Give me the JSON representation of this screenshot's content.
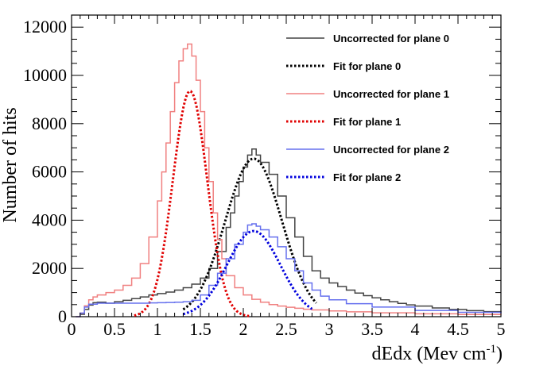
{
  "chart_data": {
    "type": "line",
    "xlabel": "dEdx (Mev cm",
    "xlabel_sup": "-1",
    "xlabel_close": ")",
    "ylabel": "Number of hits",
    "xlim": [
      0,
      5
    ],
    "ylim": [
      0,
      12500
    ],
    "x_ticks": [
      "0",
      "0.5",
      "1",
      "1.5",
      "2",
      "2.5",
      "3",
      "3.5",
      "4",
      "4.5",
      "5"
    ],
    "y_ticks": [
      "0",
      "2000",
      "4000",
      "6000",
      "8000",
      "10000",
      "12000"
    ],
    "legend_position": "top-right",
    "grid": false,
    "series": [
      {
        "name": "Uncorrected for plane 0",
        "color": "#444444",
        "style": "hist",
        "points": [
          [
            0.05,
            0
          ],
          [
            0.1,
            100
          ],
          [
            0.15,
            300
          ],
          [
            0.2,
            480
          ],
          [
            0.25,
            580
          ],
          [
            0.3,
            600
          ],
          [
            0.4,
            560
          ],
          [
            0.5,
            620
          ],
          [
            0.6,
            680
          ],
          [
            0.7,
            750
          ],
          [
            0.8,
            820
          ],
          [
            0.9,
            900
          ],
          [
            1.0,
            960
          ],
          [
            1.1,
            1020
          ],
          [
            1.2,
            1100
          ],
          [
            1.3,
            1200
          ],
          [
            1.4,
            1350
          ],
          [
            1.5,
            1600
          ],
          [
            1.6,
            2000
          ],
          [
            1.7,
            2700
          ],
          [
            1.8,
            3700
          ],
          [
            1.85,
            4300
          ],
          [
            1.9,
            5000
          ],
          [
            1.95,
            5600
          ],
          [
            2.0,
            6200
          ],
          [
            2.05,
            6700
          ],
          [
            2.1,
            6950
          ],
          [
            2.15,
            6700
          ],
          [
            2.2,
            6400
          ],
          [
            2.3,
            5900
          ],
          [
            2.4,
            5000
          ],
          [
            2.5,
            4100
          ],
          [
            2.6,
            3300
          ],
          [
            2.7,
            2500
          ],
          [
            2.8,
            1900
          ],
          [
            2.9,
            1600
          ],
          [
            3.0,
            1400
          ],
          [
            3.1,
            1250
          ],
          [
            3.2,
            1100
          ],
          [
            3.3,
            980
          ],
          [
            3.4,
            870
          ],
          [
            3.5,
            780
          ],
          [
            3.6,
            700
          ],
          [
            3.7,
            620
          ],
          [
            3.8,
            550
          ],
          [
            3.9,
            490
          ],
          [
            4.0,
            440
          ],
          [
            4.2,
            360
          ],
          [
            4.4,
            300
          ],
          [
            4.6,
            250
          ],
          [
            4.8,
            210
          ],
          [
            5.0,
            180
          ]
        ]
      },
      {
        "name": "Fit for plane 0",
        "color": "#000000",
        "style": "fit",
        "mean": 2.12,
        "sigma": 0.33,
        "amp": 6550,
        "from": 1.3,
        "to": 2.85
      },
      {
        "name": "Uncorrected for plane 1",
        "color": "#f08080",
        "style": "hist",
        "points": [
          [
            0.05,
            0
          ],
          [
            0.1,
            150
          ],
          [
            0.15,
            450
          ],
          [
            0.2,
            700
          ],
          [
            0.25,
            820
          ],
          [
            0.3,
            900
          ],
          [
            0.4,
            1000
          ],
          [
            0.5,
            1100
          ],
          [
            0.6,
            1300
          ],
          [
            0.7,
            1600
          ],
          [
            0.8,
            2200
          ],
          [
            0.9,
            3300
          ],
          [
            1.0,
            4800
          ],
          [
            1.05,
            6000
          ],
          [
            1.1,
            7200
          ],
          [
            1.15,
            8500
          ],
          [
            1.2,
            9700
          ],
          [
            1.25,
            10600
          ],
          [
            1.3,
            11100
          ],
          [
            1.35,
            11300
          ],
          [
            1.4,
            10800
          ],
          [
            1.45,
            9800
          ],
          [
            1.5,
            8500
          ],
          [
            1.55,
            7000
          ],
          [
            1.6,
            5600
          ],
          [
            1.65,
            4300
          ],
          [
            1.7,
            3200
          ],
          [
            1.75,
            2400
          ],
          [
            1.8,
            1700
          ],
          [
            1.9,
            1200
          ],
          [
            2.0,
            900
          ],
          [
            2.1,
            720
          ],
          [
            2.2,
            600
          ],
          [
            2.3,
            500
          ],
          [
            2.4,
            440
          ],
          [
            2.5,
            390
          ],
          [
            2.6,
            350
          ],
          [
            2.7,
            310
          ],
          [
            2.8,
            280
          ],
          [
            3.0,
            240
          ],
          [
            3.2,
            200
          ],
          [
            3.5,
            160
          ],
          [
            4.0,
            120
          ],
          [
            4.5,
            90
          ],
          [
            5.0,
            70
          ]
        ]
      },
      {
        "name": "Fit for plane 1",
        "color": "#e00000",
        "style": "fit",
        "mean": 1.38,
        "sigma": 0.2,
        "amp": 9350,
        "from": 0.73,
        "to": 2.08
      },
      {
        "name": "Uncorrected for plane 2",
        "color": "#6670ee",
        "style": "hist",
        "points": [
          [
            0.05,
            0
          ],
          [
            0.1,
            150
          ],
          [
            0.15,
            400
          ],
          [
            0.2,
            520
          ],
          [
            0.3,
            560
          ],
          [
            0.5,
            560
          ],
          [
            0.7,
            560
          ],
          [
            0.9,
            570
          ],
          [
            1.0,
            580
          ],
          [
            1.1,
            590
          ],
          [
            1.2,
            600
          ],
          [
            1.3,
            620
          ],
          [
            1.4,
            680
          ],
          [
            1.5,
            900
          ],
          [
            1.6,
            1300
          ],
          [
            1.7,
            1800
          ],
          [
            1.8,
            2400
          ],
          [
            1.9,
            3000
          ],
          [
            2.0,
            3500
          ],
          [
            2.05,
            3800
          ],
          [
            2.1,
            3850
          ],
          [
            2.15,
            3750
          ],
          [
            2.2,
            3600
          ],
          [
            2.3,
            3300
          ],
          [
            2.4,
            2900
          ],
          [
            2.5,
            2400
          ],
          [
            2.6,
            1900
          ],
          [
            2.7,
            1400
          ],
          [
            2.8,
            1100
          ],
          [
            2.9,
            850
          ],
          [
            3.0,
            700
          ],
          [
            3.2,
            540
          ],
          [
            3.5,
            400
          ],
          [
            4.0,
            260
          ],
          [
            4.5,
            180
          ],
          [
            5.0,
            130
          ]
        ]
      },
      {
        "name": "Fit for plane 2",
        "color": "#0000dd",
        "style": "fit",
        "mean": 2.12,
        "sigma": 0.31,
        "amp": 3550,
        "from": 1.3,
        "to": 2.8
      }
    ]
  }
}
